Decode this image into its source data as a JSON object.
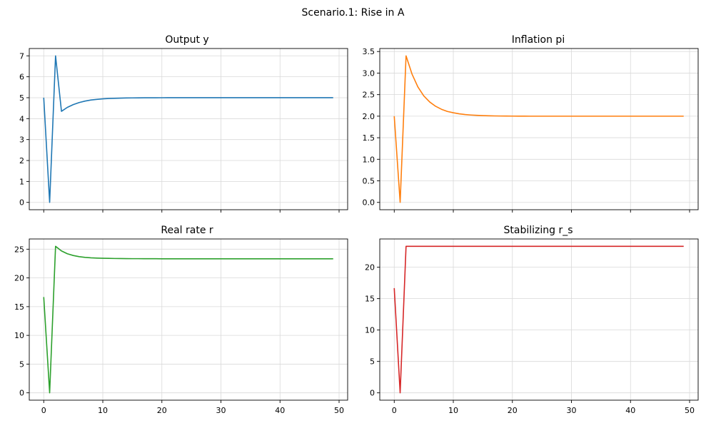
{
  "figure": {
    "suptitle": "Scenario.1: Rise in A"
  },
  "colors": {
    "series": [
      "#1f77b4",
      "#ff7f0e",
      "#2ca02c",
      "#d62728"
    ],
    "grid": "#d9d9d9",
    "axes": "#000000",
    "background": "#ffffff"
  },
  "chart_data": [
    {
      "type": "line",
      "title": "Output y",
      "xlabel": "",
      "ylabel": "",
      "grid": true,
      "xlim": [
        -2.45,
        51.45
      ],
      "ylim": [
        -0.35,
        7.35
      ],
      "xticks": [
        0,
        10,
        20,
        30,
        40,
        50
      ],
      "show_xticklabels": false,
      "yticks": [
        0,
        1,
        2,
        3,
        4,
        5,
        6,
        7
      ],
      "yticklabels": [
        "0",
        "1",
        "2",
        "3",
        "4",
        "5",
        "6",
        "7"
      ],
      "series": [
        {
          "x": [
            0,
            1,
            2,
            3,
            4,
            5,
            6,
            7,
            8,
            9,
            10,
            11,
            12,
            13,
            14,
            15,
            16,
            17,
            18,
            19,
            20,
            21,
            22,
            23,
            24,
            25,
            26,
            27,
            28,
            29,
            30,
            31,
            32,
            33,
            34,
            35,
            36,
            37,
            38,
            39,
            40,
            41,
            42,
            43,
            44,
            45,
            46,
            47,
            48,
            49
          ],
          "values": [
            5,
            0,
            7,
            4.35,
            4.54,
            4.67,
            4.77,
            4.84,
            4.89,
            4.92,
            4.945,
            4.962,
            4.973,
            4.981,
            4.987,
            4.991,
            4.994,
            4.996,
            4.997,
            4.998,
            4.999,
            5,
            5,
            5,
            5,
            5,
            5,
            5,
            5,
            5,
            5,
            5,
            5,
            5,
            5,
            5,
            5,
            5,
            5,
            5,
            5,
            5,
            5,
            5,
            5,
            5,
            5,
            5,
            5,
            5
          ]
        }
      ]
    },
    {
      "type": "line",
      "title": "Inflation pi",
      "xlabel": "",
      "ylabel": "",
      "grid": true,
      "xlim": [
        -2.45,
        51.45
      ],
      "ylim": [
        -0.17,
        3.57
      ],
      "xticks": [
        0,
        10,
        20,
        30,
        40,
        50
      ],
      "show_xticklabels": false,
      "yticks": [
        0,
        0.5,
        1,
        1.5,
        2,
        2.5,
        3,
        3.5
      ],
      "yticklabels": [
        "0.0",
        "0.5",
        "1.0",
        "1.5",
        "2.0",
        "2.5",
        "3.0",
        "3.5"
      ],
      "series": [
        {
          "x": [
            0,
            1,
            2,
            3,
            4,
            5,
            6,
            7,
            8,
            9,
            10,
            11,
            12,
            13,
            14,
            15,
            16,
            17,
            18,
            19,
            20,
            21,
            22,
            23,
            24,
            25,
            26,
            27,
            28,
            29,
            30,
            31,
            32,
            33,
            34,
            35,
            36,
            37,
            38,
            39,
            40,
            41,
            42,
            43,
            44,
            45,
            46,
            47,
            48,
            49
          ],
          "values": [
            2,
            0,
            3.4,
            2.98,
            2.68,
            2.47,
            2.33,
            2.23,
            2.16,
            2.11,
            2.08,
            2.055,
            2.038,
            2.027,
            2.019,
            2.013,
            2.009,
            2.006,
            2.004,
            2.003,
            2.002,
            2.001,
            2.001,
            2,
            2,
            2,
            2,
            2,
            2,
            2,
            2,
            2,
            2,
            2,
            2,
            2,
            2,
            2,
            2,
            2,
            2,
            2,
            2,
            2,
            2,
            2,
            2,
            2,
            2,
            2
          ]
        }
      ]
    },
    {
      "type": "line",
      "title": "Real rate r",
      "xlabel": "",
      "ylabel": "",
      "grid": true,
      "xlim": [
        -2.45,
        51.45
      ],
      "ylim": [
        -1.28,
        26.78
      ],
      "xticks": [
        0,
        10,
        20,
        30,
        40,
        50
      ],
      "xticklabels": [
        "0",
        "10",
        "20",
        "30",
        "40",
        "50"
      ],
      "show_xticklabels": true,
      "yticks": [
        0,
        5,
        10,
        15,
        20,
        25
      ],
      "yticklabels": [
        "0",
        "5",
        "10",
        "15",
        "20",
        "25"
      ],
      "series": [
        {
          "x": [
            0,
            1,
            2,
            3,
            4,
            5,
            6,
            7,
            8,
            9,
            10,
            11,
            12,
            13,
            14,
            15,
            16,
            17,
            18,
            19,
            20,
            21,
            22,
            23,
            24,
            25,
            26,
            27,
            28,
            29,
            30,
            31,
            32,
            33,
            34,
            35,
            36,
            37,
            38,
            39,
            40,
            41,
            42,
            43,
            44,
            45,
            46,
            47,
            48,
            49
          ],
          "values": [
            16.67,
            0,
            25.5,
            24.7,
            24.2,
            23.9,
            23.7,
            23.58,
            23.5,
            23.45,
            23.42,
            23.4,
            23.38,
            23.37,
            23.36,
            23.35,
            23.35,
            23.34,
            23.34,
            23.34,
            23.33,
            23.33,
            23.33,
            23.33,
            23.33,
            23.33,
            23.33,
            23.33,
            23.33,
            23.33,
            23.33,
            23.33,
            23.33,
            23.33,
            23.33,
            23.33,
            23.33,
            23.33,
            23.33,
            23.33,
            23.33,
            23.33,
            23.33,
            23.33,
            23.33,
            23.33,
            23.33,
            23.33,
            23.33,
            23.33
          ]
        }
      ]
    },
    {
      "type": "line",
      "title": "Stabilizing r_s",
      "xlabel": "",
      "ylabel": "",
      "grid": true,
      "xlim": [
        -2.45,
        51.45
      ],
      "ylim": [
        -1.17,
        24.5
      ],
      "xticks": [
        0,
        10,
        20,
        30,
        40,
        50
      ],
      "xticklabels": [
        "0",
        "10",
        "20",
        "30",
        "40",
        "50"
      ],
      "show_xticklabels": true,
      "yticks": [
        0,
        5,
        10,
        15,
        20
      ],
      "yticklabels": [
        "0",
        "5",
        "10",
        "15",
        "20"
      ],
      "series": [
        {
          "x": [
            0,
            1,
            2,
            3,
            4,
            5,
            6,
            7,
            8,
            9,
            10,
            11,
            12,
            13,
            14,
            15,
            16,
            17,
            18,
            19,
            20,
            21,
            22,
            23,
            24,
            25,
            26,
            27,
            28,
            29,
            30,
            31,
            32,
            33,
            34,
            35,
            36,
            37,
            38,
            39,
            40,
            41,
            42,
            43,
            44,
            45,
            46,
            47,
            48,
            49
          ],
          "values": [
            16.67,
            0,
            23.33,
            23.33,
            23.33,
            23.33,
            23.33,
            23.33,
            23.33,
            23.33,
            23.33,
            23.33,
            23.33,
            23.33,
            23.33,
            23.33,
            23.33,
            23.33,
            23.33,
            23.33,
            23.33,
            23.33,
            23.33,
            23.33,
            23.33,
            23.33,
            23.33,
            23.33,
            23.33,
            23.33,
            23.33,
            23.33,
            23.33,
            23.33,
            23.33,
            23.33,
            23.33,
            23.33,
            23.33,
            23.33,
            23.33,
            23.33,
            23.33,
            23.33,
            23.33,
            23.33,
            23.33,
            23.33,
            23.33,
            23.33
          ]
        }
      ]
    }
  ]
}
